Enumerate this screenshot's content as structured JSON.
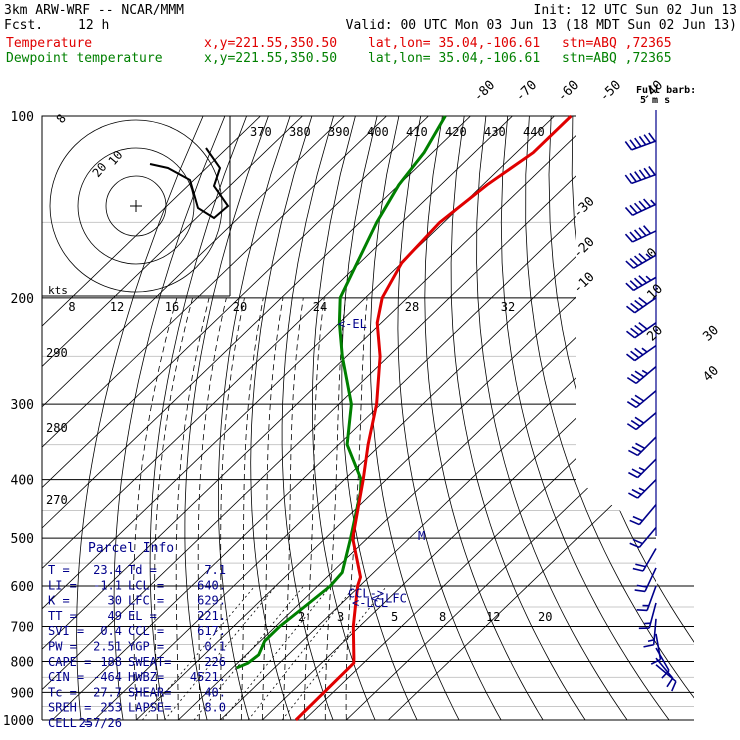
{
  "header": {
    "model": "3km ARW-WRF -- NCAR/MMM",
    "fcst_label": "Fcst.",
    "fcst_value": "12 h",
    "init": "Init: 12 UTC Sun 02 Jun 13",
    "valid": "Valid: 00 UTC Mon 03 Jun 13 (18 MDT Sun 02 Jun 13)"
  },
  "legend": [
    {
      "name": "Temperature",
      "xy": "x,y=221.55,350.50",
      "latlon": "lat,lon= 35.04,-106.61",
      "stn": "stn=ABQ ,72365",
      "color": "#e00000"
    },
    {
      "name": "Dewpoint temperature",
      "xy": "x,y=221.55,350.50",
      "latlon": "lat,lon= 35.04,-106.61",
      "stn": "stn=ABQ ,72365",
      "color": "#008000"
    }
  ],
  "chart_data": {
    "type": "line",
    "pressure_labels": [
      "100",
      "200",
      "300",
      "400",
      "500",
      "600",
      "700",
      "800",
      "900",
      "1000"
    ],
    "pressure_levels": [
      100,
      200,
      300,
      400,
      500,
      600,
      700,
      800,
      900,
      1000
    ],
    "isotherm_labels": [
      {
        "value": -80,
        "text": "-80"
      },
      {
        "value": -70,
        "text": "-70"
      },
      {
        "value": -60,
        "text": "-60"
      },
      {
        "value": -50,
        "text": "-50"
      },
      {
        "value": -40,
        "text": "-40"
      },
      {
        "value": -30,
        "text": "-30"
      },
      {
        "value": -20,
        "text": "-20"
      },
      {
        "value": -10,
        "text": "-10"
      },
      {
        "value": 0,
        "text": "0"
      },
      {
        "value": 10,
        "text": "10"
      },
      {
        "value": 20,
        "text": "20"
      },
      {
        "value": 30,
        "text": "30"
      },
      {
        "value": 40,
        "text": "40"
      }
    ],
    "theta_labels": [
      "370",
      "380",
      "390",
      "400",
      "410",
      "420",
      "430",
      "440"
    ],
    "theta_left_labels": [
      "290",
      "280",
      "270"
    ],
    "mixing_ratio_labels": [
      "2",
      "3",
      "5",
      "8",
      "12",
      "20"
    ],
    "temperature_color": "#e00000",
    "dewpoint_color": "#008000",
    "temperature_profile": [
      {
        "p": 1000,
        "t": 28
      },
      {
        "p": 805,
        "t": 27.7
      },
      {
        "p": 790,
        "t": 26.5
      },
      {
        "p": 700,
        "t": 18.5
      },
      {
        "p": 600,
        "t": 9.5
      },
      {
        "p": 580,
        "t": 8.0
      },
      {
        "p": 500,
        "t": -3.5
      },
      {
        "p": 400,
        "t": -15.5
      },
      {
        "p": 350,
        "t": -23
      },
      {
        "p": 300,
        "t": -31
      },
      {
        "p": 250,
        "t": -42
      },
      {
        "p": 220,
        "t": -51
      },
      {
        "p": 200,
        "t": -56
      },
      {
        "p": 175,
        "t": -60
      },
      {
        "p": 150,
        "t": -61
      },
      {
        "p": 130,
        "t": -59
      },
      {
        "p": 115,
        "t": -56
      },
      {
        "p": 100,
        "t": -56
      }
    ],
    "dewpoint_profile": [
      {
        "p": 820,
        "t": 1.0
      },
      {
        "p": 805,
        "t": 2.5
      },
      {
        "p": 780,
        "t": 3.0
      },
      {
        "p": 740,
        "t": 1.0
      },
      {
        "p": 700,
        "t": 1.0
      },
      {
        "p": 650,
        "t": 2.0
      },
      {
        "p": 600,
        "t": 3.0
      },
      {
        "p": 570,
        "t": 2.5
      },
      {
        "p": 500,
        "t": -4.0
      },
      {
        "p": 420,
        "t": -13.0
      },
      {
        "p": 400,
        "t": -16.0
      },
      {
        "p": 350,
        "t": -28
      },
      {
        "p": 300,
        "t": -37
      },
      {
        "p": 250,
        "t": -51
      },
      {
        "p": 220,
        "t": -60
      },
      {
        "p": 200,
        "t": -66
      },
      {
        "p": 150,
        "t": -76
      },
      {
        "p": 130,
        "t": -80
      },
      {
        "p": 115,
        "t": -82
      },
      {
        "p": 100,
        "t": -86
      }
    ],
    "level_markers": [
      {
        "label": "<-EL",
        "p": 221,
        "offset": -38
      },
      {
        "label": "CCL->",
        "p": 617,
        "offset": -2
      },
      {
        "label": "<-LCL",
        "p": 640,
        "offset": 12
      },
      {
        "label": "<-LFC",
        "p": 629,
        "offset": 26
      }
    ],
    "level_marker_M": "M",
    "wind_barbs": [
      {
        "p": 110,
        "dir": 280,
        "spd": 60
      },
      {
        "p": 125,
        "dir": 280,
        "spd": 60
      },
      {
        "p": 140,
        "dir": 275,
        "spd": 55
      },
      {
        "p": 155,
        "dir": 275,
        "spd": 50
      },
      {
        "p": 170,
        "dir": 270,
        "spd": 45
      },
      {
        "p": 185,
        "dir": 270,
        "spd": 45
      },
      {
        "p": 200,
        "dir": 265,
        "spd": 40
      },
      {
        "p": 220,
        "dir": 265,
        "spd": 40
      },
      {
        "p": 240,
        "dir": 265,
        "spd": 35
      },
      {
        "p": 260,
        "dir": 260,
        "spd": 35
      },
      {
        "p": 285,
        "dir": 260,
        "spd": 30
      },
      {
        "p": 310,
        "dir": 260,
        "spd": 30
      },
      {
        "p": 340,
        "dir": 255,
        "spd": 30
      },
      {
        "p": 370,
        "dir": 255,
        "spd": 25
      },
      {
        "p": 400,
        "dir": 255,
        "spd": 25
      },
      {
        "p": 440,
        "dir": 250,
        "spd": 20
      },
      {
        "p": 480,
        "dir": 250,
        "spd": 20
      },
      {
        "p": 520,
        "dir": 240,
        "spd": 20
      },
      {
        "p": 560,
        "dir": 235,
        "spd": 20
      },
      {
        "p": 600,
        "dir": 230,
        "spd": 15
      },
      {
        "p": 640,
        "dir": 225,
        "spd": 15
      },
      {
        "p": 680,
        "dir": 215,
        "spd": 15
      },
      {
        "p": 720,
        "dir": 200,
        "spd": 10
      },
      {
        "p": 760,
        "dir": 180,
        "spd": 10
      },
      {
        "p": 790,
        "dir": 170,
        "spd": 10
      },
      {
        "p": 810,
        "dir": 160,
        "spd": 10
      }
    ],
    "full_barb_label": "Full barb:",
    "full_barb_value": "5 m s",
    "hodograph_rings": [
      "8",
      "20",
      "10"
    ],
    "hodograph_kts_label": "kts",
    "hodograph_speed_labels": [
      "8",
      "12",
      "16",
      "20",
      "24",
      "28",
      "32"
    ],
    "parcel_info": {
      "title": "Parcel Info",
      "rows": [
        [
          "T  =",
          "23.4",
          "Td =",
          "7.1"
        ],
        [
          "LI =",
          "-1.1",
          "LCL =",
          "640."
        ],
        [
          "K  =",
          "30",
          "LFC =",
          "629."
        ],
        [
          "TT =",
          "49",
          "EL =",
          "221."
        ],
        [
          "SVI =",
          "0.4",
          "CCL =",
          "617."
        ],
        [
          "PW =",
          "2.51",
          "YGP =",
          "0.1"
        ],
        [
          "CAPE =",
          "188",
          "SWEAT=",
          "226"
        ],
        [
          "CIN =",
          "-464",
          "HWBZ=",
          "4521."
        ],
        [
          "Tc =",
          "27.7",
          "SHEAR=",
          "40."
        ],
        [
          "SREH =",
          "253",
          "LAPSE=",
          "8.0"
        ],
        [
          "CELL =",
          "257/26",
          "",
          ""
        ]
      ]
    }
  }
}
